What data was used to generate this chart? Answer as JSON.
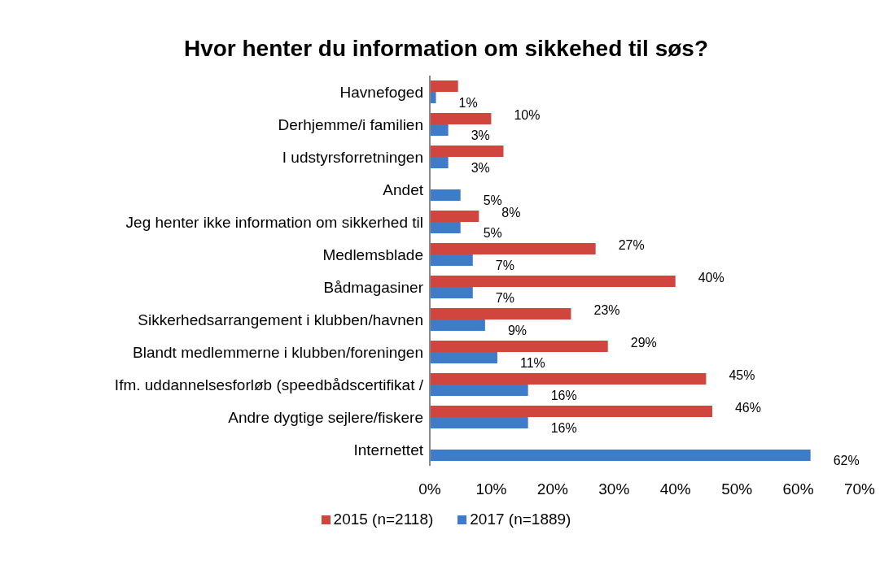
{
  "chart_data": {
    "type": "bar",
    "orientation": "horizontal",
    "title": "Hvor henter du information om sikkehed til søs?",
    "categories": [
      "Havnefoged",
      "Derhjemme/i familien",
      "I udstyrsforretningen",
      "Andet",
      "Jeg henter ikke information om sikkerhed til",
      "Medlemsblade",
      "Bådmagasiner",
      "Sikkerhedsarrangement i klubben/havnen",
      "Blandt medlemmerne i klubben/foreningen",
      "Ifm. uddannelsesforløb (speedbådscertifikat /",
      "Andre dygtige sejlere/fiskere",
      "Internettet"
    ],
    "series": [
      {
        "name": "2015 (n=2118)",
        "color": "#d0463f",
        "values": [
          4.6,
          10,
          12,
          null,
          8,
          27,
          40,
          23,
          29,
          45,
          46,
          null
        ],
        "value_labels": [
          null,
          "10%",
          null,
          null,
          "8%",
          "27%",
          "40%",
          "23%",
          "29%",
          "45%",
          "46%",
          null
        ]
      },
      {
        "name": "2017 (n=1889)",
        "color": "#3d7cc9",
        "values": [
          1,
          3,
          3,
          5,
          5,
          7,
          7,
          9,
          11,
          16,
          16,
          62
        ],
        "value_labels": [
          "1%",
          "3%",
          "3%",
          "5%",
          "5%",
          "7%",
          "7%",
          "9%",
          "11%",
          "16%",
          "16%",
          "62%"
        ]
      }
    ],
    "xlim": [
      0,
      70
    ],
    "xticks": [
      {
        "value": 0,
        "label": "0%"
      },
      {
        "value": 10,
        "label": "10%"
      },
      {
        "value": 20,
        "label": "20%"
      },
      {
        "value": 30,
        "label": "30%"
      },
      {
        "value": 40,
        "label": "40%"
      },
      {
        "value": 50,
        "label": "50%"
      },
      {
        "value": 60,
        "label": "60%"
      },
      {
        "value": 70,
        "label": "70%"
      }
    ],
    "grid": false,
    "legend": "bottom"
  }
}
